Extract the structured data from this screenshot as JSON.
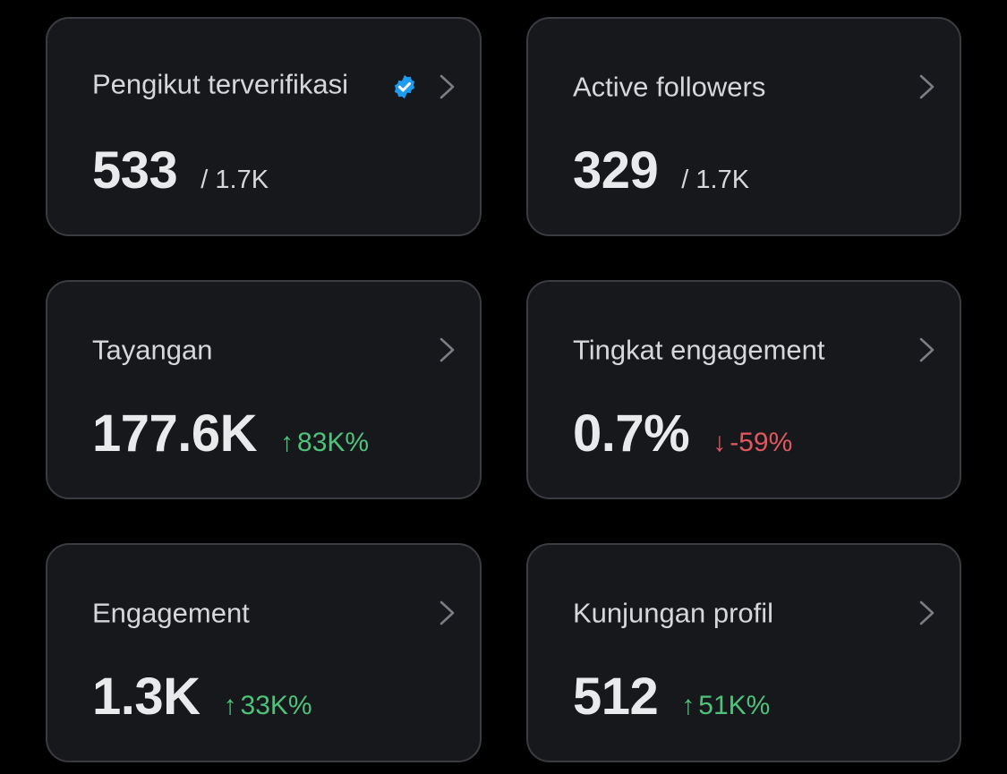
{
  "cards": [
    {
      "title": "Pengikut terverifikasi",
      "value": "533",
      "total": "/ 1.7K",
      "verified": true,
      "icon": "chevron-right-icon"
    },
    {
      "title": "Active followers",
      "value": "329",
      "total": "/ 1.7K",
      "icon": "chevron-right-icon"
    },
    {
      "title": "Tayangan",
      "value": "177.6K",
      "delta": "83K%",
      "delta_direction": "up",
      "delta_arrow": "↑",
      "icon": "chevron-right-icon"
    },
    {
      "title": "Tingkat engagement",
      "value": "0.7%",
      "delta": "-59%",
      "delta_direction": "down",
      "delta_arrow": "↓",
      "icon": "chevron-right-icon"
    },
    {
      "title": "Engagement",
      "value": "1.3K",
      "delta": "33K%",
      "delta_direction": "up",
      "delta_arrow": "↑",
      "icon": "chevron-right-icon"
    },
    {
      "title": "Kunjungan profil",
      "value": "512",
      "delta": "51K%",
      "delta_direction": "up",
      "delta_arrow": "↑",
      "icon": "chevron-right-icon"
    }
  ],
  "colors": {
    "background": "#000000",
    "card": "#17181c",
    "card_border": "#3a3c41",
    "positive": "#4ec27a",
    "negative": "#e0575e",
    "verified_badge": "#1d9bf0"
  }
}
